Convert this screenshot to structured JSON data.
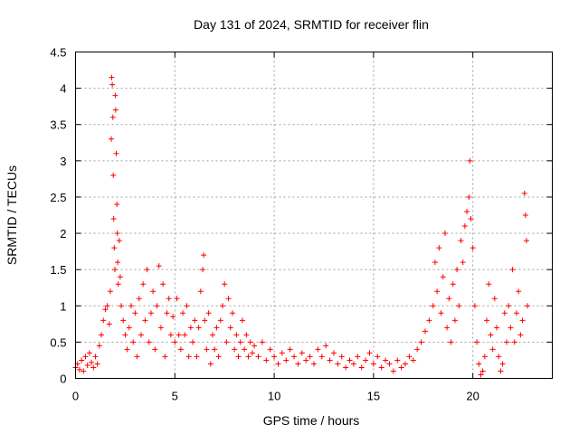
{
  "chart_data": {
    "type": "scatter",
    "title": "Day 131 of 2024, SRMTID for receiver flin",
    "xlabel": "GPS time / hours",
    "ylabel": "SRMTID / TECUs",
    "xlim": [
      0,
      24
    ],
    "ylim": [
      0,
      4.5
    ],
    "x_ticks": [
      0,
      5,
      10,
      15,
      20
    ],
    "y_ticks": [
      0,
      0.5,
      1,
      1.5,
      2,
      2.5,
      3,
      3.5,
      4,
      4.5
    ],
    "x_tick_labels": [
      "0",
      "5",
      "10",
      "15",
      "20"
    ],
    "y_tick_labels": [
      "0",
      "0.5",
      "1",
      "1.5",
      "2",
      "2.5",
      "3",
      "3.5",
      "4",
      "4.5"
    ],
    "grid": true,
    "marker": "+",
    "color": "#ff0000",
    "series": [
      {
        "name": "SRMTID",
        "points": [
          [
            0.0,
            0.15
          ],
          [
            0.1,
            0.2
          ],
          [
            0.2,
            0.12
          ],
          [
            0.3,
            0.25
          ],
          [
            0.4,
            0.1
          ],
          [
            0.5,
            0.3
          ],
          [
            0.6,
            0.18
          ],
          [
            0.7,
            0.35
          ],
          [
            0.8,
            0.22
          ],
          [
            0.9,
            0.15
          ],
          [
            1.0,
            0.3
          ],
          [
            1.1,
            0.2
          ],
          [
            1.2,
            0.45
          ],
          [
            1.3,
            0.6
          ],
          [
            1.4,
            0.8
          ],
          [
            1.5,
            0.95
          ],
          [
            1.6,
            1.0
          ],
          [
            1.7,
            0.75
          ],
          [
            1.75,
            1.2
          ],
          [
            1.8,
            3.3
          ],
          [
            1.82,
            4.15
          ],
          [
            1.85,
            4.05
          ],
          [
            1.88,
            3.6
          ],
          [
            1.9,
            2.8
          ],
          [
            1.92,
            2.2
          ],
          [
            1.95,
            1.8
          ],
          [
            1.98,
            1.5
          ],
          [
            2.0,
            3.9
          ],
          [
            2.02,
            3.7
          ],
          [
            2.05,
            3.1
          ],
          [
            2.08,
            2.4
          ],
          [
            2.1,
            2.0
          ],
          [
            2.12,
            1.6
          ],
          [
            2.15,
            1.3
          ],
          [
            2.2,
            1.9
          ],
          [
            2.25,
            1.4
          ],
          [
            2.3,
            1.0
          ],
          [
            2.4,
            0.8
          ],
          [
            2.5,
            0.6
          ],
          [
            2.6,
            0.4
          ],
          [
            2.7,
            0.7
          ],
          [
            2.8,
            1.0
          ],
          [
            2.9,
            0.5
          ],
          [
            3.0,
            0.9
          ],
          [
            3.1,
            0.3
          ],
          [
            3.2,
            1.1
          ],
          [
            3.3,
            0.6
          ],
          [
            3.4,
            1.3
          ],
          [
            3.5,
            0.8
          ],
          [
            3.6,
            1.5
          ],
          [
            3.7,
            0.5
          ],
          [
            3.8,
            0.9
          ],
          [
            3.9,
            1.2
          ],
          [
            4.0,
            0.4
          ],
          [
            4.1,
            1.0
          ],
          [
            4.2,
            1.55
          ],
          [
            4.3,
            0.7
          ],
          [
            4.4,
            1.3
          ],
          [
            4.5,
            0.3
          ],
          [
            4.6,
            0.9
          ],
          [
            4.7,
            1.1
          ],
          [
            4.8,
            0.6
          ],
          [
            4.9,
            0.85
          ],
          [
            5.0,
            0.5
          ],
          [
            5.1,
            1.1
          ],
          [
            5.2,
            0.6
          ],
          [
            5.3,
            0.4
          ],
          [
            5.4,
            0.9
          ],
          [
            5.5,
            0.6
          ],
          [
            5.6,
            1.0
          ],
          [
            5.7,
            0.3
          ],
          [
            5.8,
            0.7
          ],
          [
            5.9,
            0.5
          ],
          [
            6.0,
            0.8
          ],
          [
            6.1,
            0.3
          ],
          [
            6.2,
            0.7
          ],
          [
            6.3,
            1.2
          ],
          [
            6.4,
            1.5
          ],
          [
            6.45,
            1.7
          ],
          [
            6.5,
            0.8
          ],
          [
            6.6,
            0.4
          ],
          [
            6.7,
            0.9
          ],
          [
            6.8,
            0.2
          ],
          [
            6.9,
            0.6
          ],
          [
            7.0,
            0.4
          ],
          [
            7.1,
            0.7
          ],
          [
            7.2,
            0.3
          ],
          [
            7.3,
            0.8
          ],
          [
            7.4,
            1.0
          ],
          [
            7.5,
            1.3
          ],
          [
            7.6,
            0.5
          ],
          [
            7.7,
            1.1
          ],
          [
            7.8,
            0.7
          ],
          [
            7.9,
            0.9
          ],
          [
            8.0,
            0.4
          ],
          [
            8.1,
            0.6
          ],
          [
            8.2,
            0.3
          ],
          [
            8.3,
            0.5
          ],
          [
            8.4,
            0.8
          ],
          [
            8.5,
            0.4
          ],
          [
            8.6,
            0.6
          ],
          [
            8.7,
            0.3
          ],
          [
            8.8,
            0.5
          ],
          [
            8.9,
            0.35
          ],
          [
            9.0,
            0.45
          ],
          [
            9.2,
            0.3
          ],
          [
            9.4,
            0.5
          ],
          [
            9.6,
            0.25
          ],
          [
            9.8,
            0.4
          ],
          [
            10.0,
            0.3
          ],
          [
            10.2,
            0.2
          ],
          [
            10.4,
            0.35
          ],
          [
            10.6,
            0.25
          ],
          [
            10.8,
            0.4
          ],
          [
            11.0,
            0.3
          ],
          [
            11.2,
            0.2
          ],
          [
            11.4,
            0.35
          ],
          [
            11.6,
            0.25
          ],
          [
            11.8,
            0.3
          ],
          [
            12.0,
            0.2
          ],
          [
            12.2,
            0.4
          ],
          [
            12.4,
            0.3
          ],
          [
            12.6,
            0.45
          ],
          [
            12.8,
            0.25
          ],
          [
            13.0,
            0.35
          ],
          [
            13.2,
            0.2
          ],
          [
            13.4,
            0.3
          ],
          [
            13.6,
            0.15
          ],
          [
            13.8,
            0.25
          ],
          [
            14.0,
            0.2
          ],
          [
            14.2,
            0.3
          ],
          [
            14.4,
            0.15
          ],
          [
            14.6,
            0.25
          ],
          [
            14.8,
            0.35
          ],
          [
            15.0,
            0.2
          ],
          [
            15.2,
            0.3
          ],
          [
            15.4,
            0.15
          ],
          [
            15.6,
            0.25
          ],
          [
            15.8,
            0.2
          ],
          [
            16.0,
            0.1
          ],
          [
            16.2,
            0.25
          ],
          [
            16.4,
            0.15
          ],
          [
            16.6,
            0.2
          ],
          [
            16.8,
            0.3
          ],
          [
            17.0,
            0.25
          ],
          [
            17.2,
            0.4
          ],
          [
            17.4,
            0.5
          ],
          [
            17.6,
            0.65
          ],
          [
            17.8,
            0.8
          ],
          [
            18.0,
            1.0
          ],
          [
            18.1,
            1.6
          ],
          [
            18.2,
            1.2
          ],
          [
            18.3,
            1.8
          ],
          [
            18.4,
            0.9
          ],
          [
            18.5,
            1.4
          ],
          [
            18.6,
            2.0
          ],
          [
            18.7,
            0.7
          ],
          [
            18.8,
            1.1
          ],
          [
            18.9,
            0.5
          ],
          [
            19.0,
            1.3
          ],
          [
            19.1,
            0.8
          ],
          [
            19.2,
            1.5
          ],
          [
            19.3,
            1.0
          ],
          [
            19.4,
            1.9
          ],
          [
            19.5,
            1.6
          ],
          [
            19.6,
            2.1
          ],
          [
            19.7,
            2.3
          ],
          [
            19.8,
            2.5
          ],
          [
            19.85,
            3.0
          ],
          [
            19.9,
            2.2
          ],
          [
            20.0,
            1.8
          ],
          [
            20.1,
            1.0
          ],
          [
            20.2,
            0.5
          ],
          [
            20.3,
            0.2
          ],
          [
            20.4,
            0.05
          ],
          [
            20.5,
            0.1
          ],
          [
            20.6,
            0.3
          ],
          [
            20.7,
            0.8
          ],
          [
            20.8,
            1.3
          ],
          [
            20.9,
            0.6
          ],
          [
            21.0,
            0.4
          ],
          [
            21.1,
            1.1
          ],
          [
            21.2,
            0.7
          ],
          [
            21.3,
            0.3
          ],
          [
            21.4,
            0.1
          ],
          [
            21.5,
            0.2
          ],
          [
            21.6,
            0.9
          ],
          [
            21.7,
            0.5
          ],
          [
            21.8,
            1.0
          ],
          [
            21.9,
            0.7
          ],
          [
            22.0,
            1.5
          ],
          [
            22.1,
            0.5
          ],
          [
            22.2,
            0.9
          ],
          [
            22.3,
            1.2
          ],
          [
            22.4,
            0.6
          ],
          [
            22.5,
            0.8
          ],
          [
            22.6,
            2.55
          ],
          [
            22.65,
            2.25
          ],
          [
            22.7,
            1.9
          ],
          [
            22.75,
            1.0
          ]
        ]
      }
    ]
  }
}
